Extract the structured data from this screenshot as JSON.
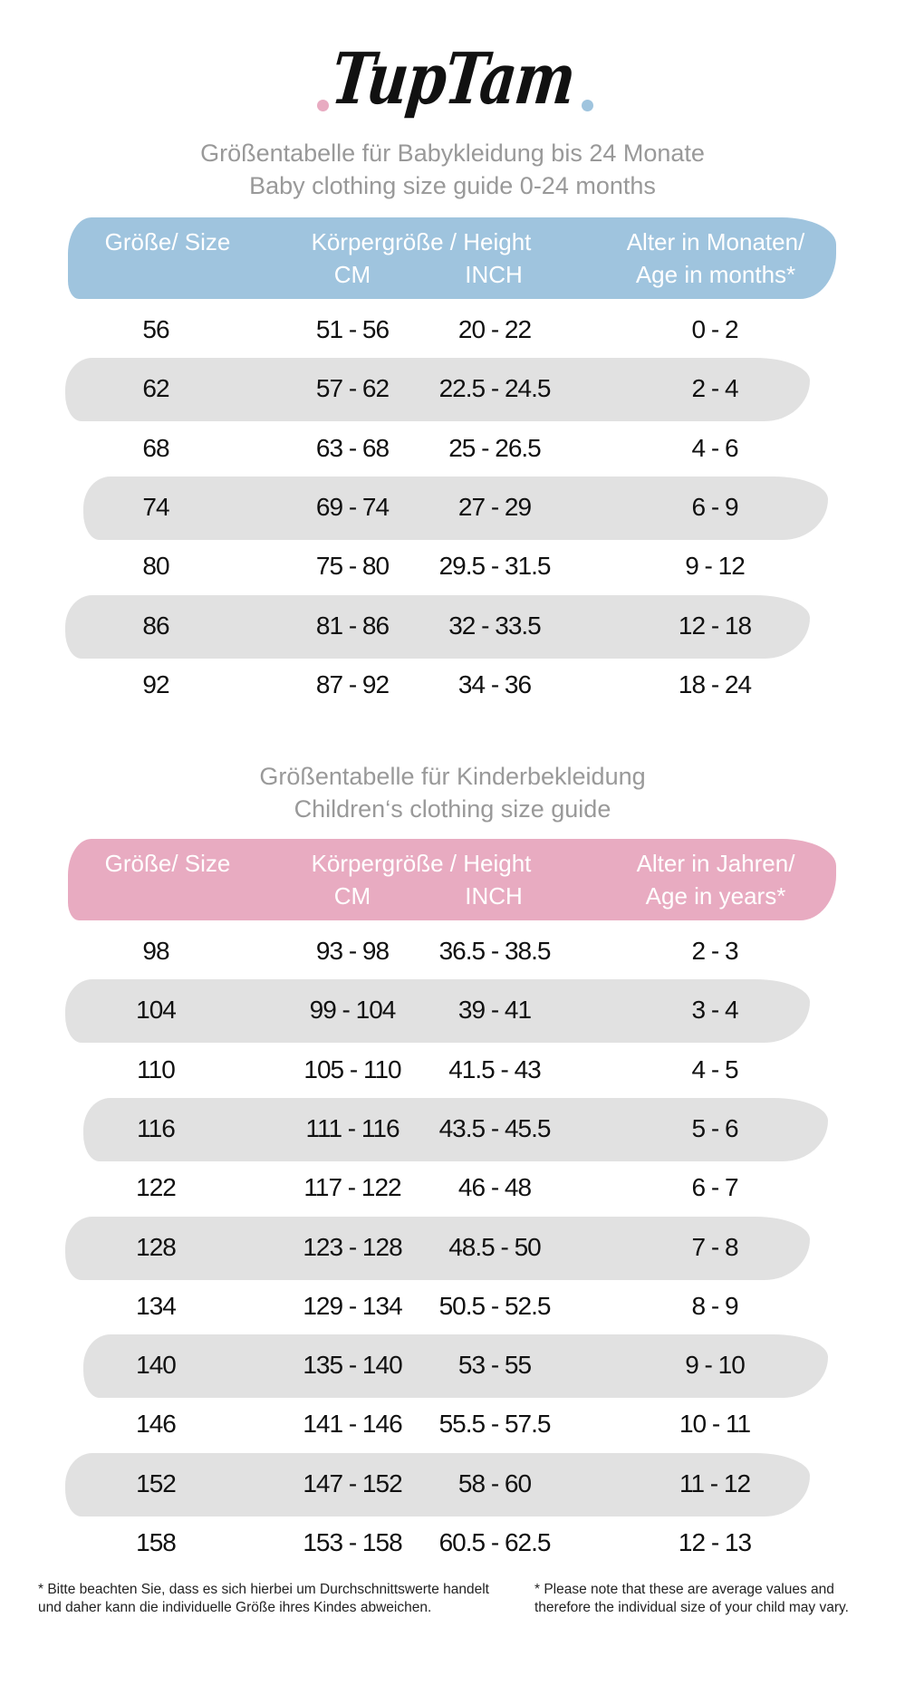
{
  "brand": {
    "logo_text": "TupTam",
    "colors": {
      "pink": "#e8abc1",
      "blue": "#9fc4de",
      "stripe": "#e1e1e1",
      "title": "#999999"
    }
  },
  "baby": {
    "title_de": "Größentabelle für Babykleidung bis 24 Monate",
    "title_en": "Baby clothing size guide 0-24 months",
    "headers": {
      "size": "Größe/ Size",
      "height": "Körpergröße / Height",
      "cm": "CM",
      "inch": "INCH",
      "age_line1": "Alter in Monaten/",
      "age_line2": "Age in months*"
    },
    "rows": [
      [
        "56",
        "51 - 56",
        "20 - 22",
        "0 - 2"
      ],
      [
        "62",
        "57 - 62",
        "22.5 - 24.5",
        "2 - 4"
      ],
      [
        "68",
        "63 - 68",
        "25 - 26.5",
        "4 - 6"
      ],
      [
        "74",
        "69 - 74",
        "27 - 29",
        "6 - 9"
      ],
      [
        "80",
        "75 - 80",
        "29.5 - 31.5",
        "9 - 12"
      ],
      [
        "86",
        "81 - 86",
        "32 - 33.5",
        "12 - 18"
      ],
      [
        "92",
        "87 - 92",
        "34 - 36",
        "18 - 24"
      ]
    ]
  },
  "kids": {
    "title_de": "Größentabelle für Kinderbekleidung",
    "title_en": "Children‘s clothing size guide",
    "headers": {
      "size": "Größe/ Size",
      "height": "Körpergröße / Height",
      "cm": "CM",
      "inch": "INCH",
      "age_line1": "Alter in Jahren/",
      "age_line2": "Age in years*"
    },
    "rows": [
      [
        "98",
        "93 - 98",
        "36.5 - 38.5",
        "2 - 3"
      ],
      [
        "104",
        "99 - 104",
        "39 - 41",
        "3 - 4"
      ],
      [
        "110",
        "105 - 110",
        "41.5 - 43",
        "4 - 5"
      ],
      [
        "116",
        "111 - 116",
        "43.5 - 45.5",
        "5 - 6"
      ],
      [
        "122",
        "117 - 122",
        "46 - 48",
        "6 - 7"
      ],
      [
        "128",
        "123 - 128",
        "48.5 - 50",
        "7 - 8"
      ],
      [
        "134",
        "129 - 134",
        "50.5 - 52.5",
        "8 - 9"
      ],
      [
        "140",
        "135 - 140",
        "53 - 55",
        "9 - 10"
      ],
      [
        "146",
        "141 - 146",
        "55.5 - 57.5",
        "10 - 11"
      ],
      [
        "152",
        "147 - 152",
        "58 - 60",
        "11 - 12"
      ],
      [
        "158",
        "153 - 158",
        "60.5 - 62.5",
        "12 - 13"
      ]
    ]
  },
  "footnotes": {
    "de_line1": "* Bitte beachten Sie, dass es sich hierbei um Durchschnittswerte handelt",
    "de_line2": "und daher kann die individuelle Größe ihres Kindes abweichen.",
    "en_line1": "* Please note that these are average values and",
    "en_line2": "therefore the individual size of your child may vary."
  }
}
